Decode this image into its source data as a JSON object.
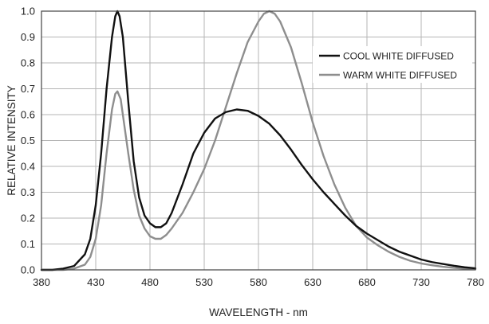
{
  "chart_data": {
    "type": "line",
    "title": "",
    "xlabel": "WAVELENGTH - nm",
    "ylabel": "RELATIVE INTENSITY",
    "xlim": [
      380,
      780
    ],
    "ylim": [
      0,
      1.0
    ],
    "x_ticks": [
      "380",
      "430",
      "480",
      "530",
      "580",
      "630",
      "680",
      "730",
      "780"
    ],
    "y_ticks": [
      "0.0",
      "0.1",
      "0.2",
      "0.3",
      "0.4",
      "0.5",
      "0.6",
      "0.7",
      "0.8",
      "0.9",
      "1.0"
    ],
    "grid": true,
    "legend_position": "top-right",
    "series": [
      {
        "name": "COOL WHITE DIFFUSED",
        "color": "#111111",
        "points": [
          [
            380,
            0.0
          ],
          [
            390,
            0.0
          ],
          [
            400,
            0.005
          ],
          [
            410,
            0.015
          ],
          [
            420,
            0.06
          ],
          [
            425,
            0.12
          ],
          [
            430,
            0.25
          ],
          [
            435,
            0.45
          ],
          [
            440,
            0.7
          ],
          [
            445,
            0.9
          ],
          [
            448,
            0.98
          ],
          [
            450,
            1.0
          ],
          [
            452,
            0.98
          ],
          [
            455,
            0.9
          ],
          [
            460,
            0.65
          ],
          [
            465,
            0.42
          ],
          [
            470,
            0.28
          ],
          [
            475,
            0.21
          ],
          [
            480,
            0.18
          ],
          [
            485,
            0.165
          ],
          [
            490,
            0.165
          ],
          [
            495,
            0.18
          ],
          [
            500,
            0.22
          ],
          [
            510,
            0.33
          ],
          [
            520,
            0.45
          ],
          [
            530,
            0.53
          ],
          [
            540,
            0.585
          ],
          [
            550,
            0.61
          ],
          [
            560,
            0.62
          ],
          [
            570,
            0.615
          ],
          [
            580,
            0.595
          ],
          [
            590,
            0.565
          ],
          [
            600,
            0.52
          ],
          [
            610,
            0.465
          ],
          [
            620,
            0.405
          ],
          [
            630,
            0.35
          ],
          [
            640,
            0.3
          ],
          [
            650,
            0.255
          ],
          [
            660,
            0.21
          ],
          [
            670,
            0.17
          ],
          [
            680,
            0.14
          ],
          [
            690,
            0.115
          ],
          [
            700,
            0.09
          ],
          [
            710,
            0.07
          ],
          [
            720,
            0.055
          ],
          [
            730,
            0.04
          ],
          [
            740,
            0.03
          ],
          [
            750,
            0.023
          ],
          [
            760,
            0.016
          ],
          [
            770,
            0.01
          ],
          [
            780,
            0.006
          ]
        ]
      },
      {
        "name": "WARM WHITE DIFFUSED",
        "color": "#8e8e8e",
        "points": [
          [
            380,
            0.0
          ],
          [
            400,
            0.0
          ],
          [
            410,
            0.005
          ],
          [
            420,
            0.02
          ],
          [
            425,
            0.05
          ],
          [
            430,
            0.12
          ],
          [
            435,
            0.25
          ],
          [
            440,
            0.45
          ],
          [
            445,
            0.62
          ],
          [
            448,
            0.68
          ],
          [
            450,
            0.69
          ],
          [
            453,
            0.66
          ],
          [
            456,
            0.57
          ],
          [
            460,
            0.45
          ],
          [
            465,
            0.31
          ],
          [
            470,
            0.21
          ],
          [
            475,
            0.16
          ],
          [
            480,
            0.13
          ],
          [
            485,
            0.12
          ],
          [
            490,
            0.12
          ],
          [
            495,
            0.135
          ],
          [
            500,
            0.16
          ],
          [
            510,
            0.22
          ],
          [
            520,
            0.3
          ],
          [
            530,
            0.39
          ],
          [
            540,
            0.5
          ],
          [
            550,
            0.63
          ],
          [
            560,
            0.76
          ],
          [
            570,
            0.88
          ],
          [
            580,
            0.96
          ],
          [
            585,
            0.99
          ],
          [
            590,
            1.0
          ],
          [
            595,
            0.99
          ],
          [
            600,
            0.96
          ],
          [
            610,
            0.86
          ],
          [
            620,
            0.72
          ],
          [
            630,
            0.57
          ],
          [
            640,
            0.44
          ],
          [
            650,
            0.33
          ],
          [
            660,
            0.24
          ],
          [
            670,
            0.17
          ],
          [
            680,
            0.125
          ],
          [
            690,
            0.095
          ],
          [
            700,
            0.07
          ],
          [
            710,
            0.05
          ],
          [
            720,
            0.035
          ],
          [
            730,
            0.025
          ],
          [
            740,
            0.018
          ],
          [
            750,
            0.012
          ],
          [
            760,
            0.008
          ],
          [
            770,
            0.005
          ],
          [
            780,
            0.003
          ]
        ]
      }
    ]
  }
}
